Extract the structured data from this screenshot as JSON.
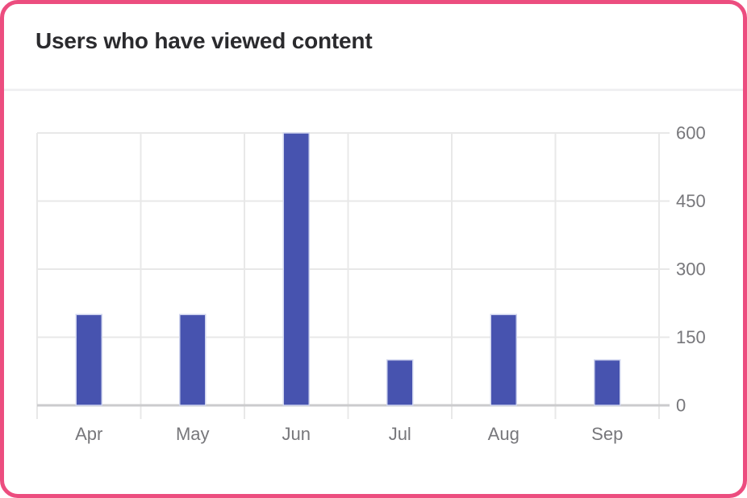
{
  "card": {
    "title": "Users who have viewed content"
  },
  "colors": {
    "card_border": "#EC4D7F",
    "card_bg": "#FFFFFF",
    "title_text": "#2B2B2E",
    "divider": "#F0F0F2",
    "bar_fill": "#4753AF",
    "bar_edge": "#CFD4EE",
    "grid_line": "#E8E8E8",
    "axis_line": "#CBCBCD",
    "axis_label": "#77777B"
  },
  "chart_data": {
    "type": "bar",
    "title": "Users who have viewed content",
    "categories": [
      "Apr",
      "May",
      "Jun",
      "Jul",
      "Aug",
      "Sep"
    ],
    "values": [
      200,
      200,
      600,
      100,
      200,
      100
    ],
    "xlabel": "",
    "ylabel": "",
    "ylim": [
      0,
      600
    ],
    "y_ticks": [
      0,
      150,
      300,
      450,
      600
    ],
    "y_axis_side": "right",
    "grid": true,
    "legend": false
  }
}
